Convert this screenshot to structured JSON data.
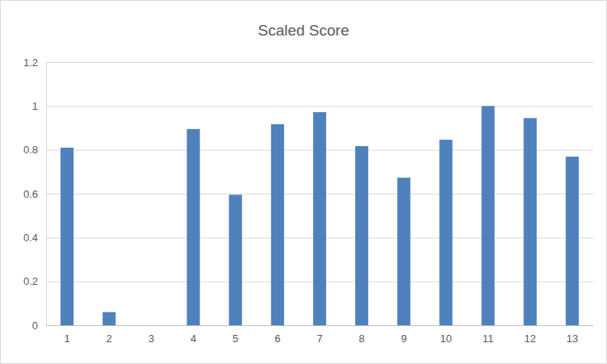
{
  "chart_data": {
    "type": "bar",
    "title": "Scaled Score",
    "categories": [
      "1",
      "2",
      "3",
      "4",
      "5",
      "6",
      "7",
      "8",
      "9",
      "10",
      "11",
      "12",
      "13"
    ],
    "values": [
      0.81,
      0.06,
      0,
      0.895,
      0.595,
      0.917,
      0.972,
      0.817,
      0.673,
      0.846,
      1.0,
      0.945,
      0.769
    ],
    "color": "#4f81bd",
    "ylim": [
      0,
      1.2
    ],
    "yticks": [
      0,
      0.2,
      0.4,
      0.6,
      0.8,
      1,
      1.2
    ],
    "grid": true
  }
}
